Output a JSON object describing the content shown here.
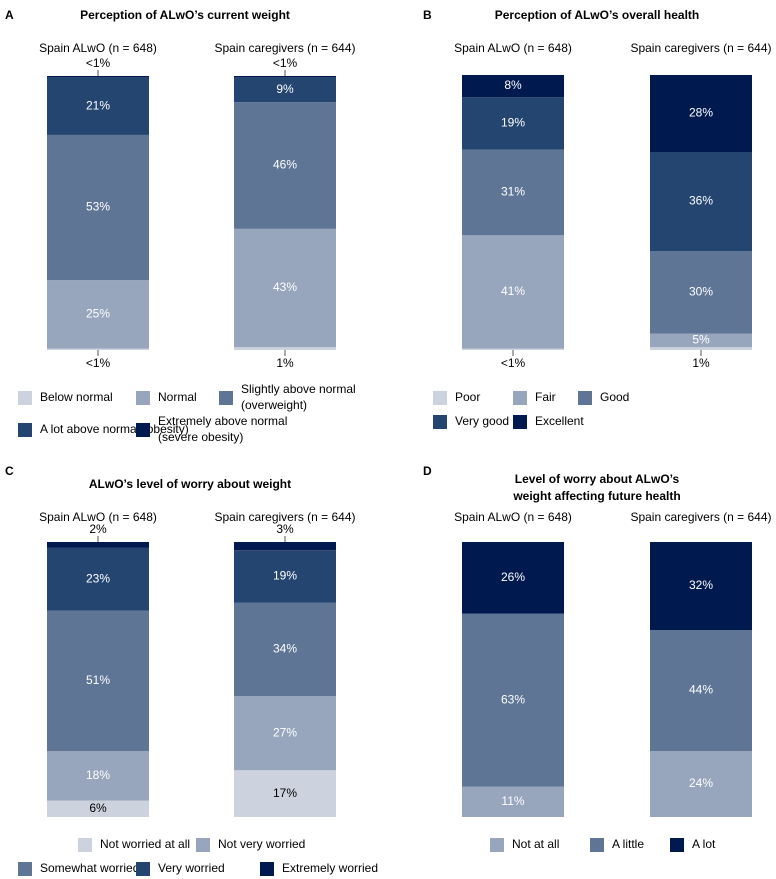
{
  "chart_data": [
    {
      "panel": "A",
      "type": "bar",
      "title": "Perception of ALwO’s current weight",
      "categories": [
        "Spain ALwO (n = 648)",
        "Spain caregivers (n = 644)"
      ],
      "legend": [
        "Below normal",
        "Normal",
        "Slightly above normal (overweight)",
        "A lot above normal (obesity)",
        "Extremely above normal (severe obesity)"
      ],
      "legend_lines": [
        [
          "Below normal"
        ],
        [
          "Normal"
        ],
        [
          "Slightly above normal",
          "(overweight)"
        ],
        [
          "A lot above normal (obesity)"
        ],
        [
          "Extremely above normal",
          "(severe obesity)"
        ]
      ],
      "series": [
        {
          "name": "Below normal",
          "values": [
            0.5,
            1
          ],
          "labels": [
            "<1%",
            "1%"
          ]
        },
        {
          "name": "Normal",
          "values": [
            25,
            43
          ],
          "labels": [
            "25%",
            "43%"
          ]
        },
        {
          "name": "Slightly above normal (overweight)",
          "values": [
            53,
            46
          ],
          "labels": [
            "53%",
            "46%"
          ]
        },
        {
          "name": "A lot above normal (obesity)",
          "values": [
            21,
            9
          ],
          "labels": [
            "21%",
            "9%"
          ]
        },
        {
          "name": "Extremely above normal (severe obesity)",
          "values": [
            0.5,
            0.5
          ],
          "labels": [
            "<1%",
            "<1%"
          ]
        }
      ],
      "stacked": true,
      "ylim": [
        0,
        100
      ]
    },
    {
      "panel": "B",
      "type": "bar",
      "title": "Perception of ALwO’s overall health",
      "categories": [
        "Spain ALwO (n = 648)",
        "Spain caregivers (n = 644)"
      ],
      "legend": [
        "Poor",
        "Fair",
        "Good",
        "Very good",
        "Excellent"
      ],
      "legend_lines": [
        [
          "Poor"
        ],
        [
          "Fair"
        ],
        [
          "Good"
        ],
        [
          "Very good"
        ],
        [
          "Excellent"
        ]
      ],
      "series": [
        {
          "name": "Poor",
          "values": [
            0.5,
            1
          ],
          "labels": [
            "<1%",
            "1%"
          ]
        },
        {
          "name": "Fair",
          "values": [
            41,
            5
          ],
          "labels": [
            "41%",
            "5%"
          ]
        },
        {
          "name": "Good",
          "values": [
            31,
            30
          ],
          "labels": [
            "31%",
            "30%"
          ]
        },
        {
          "name": "Very good",
          "values": [
            19,
            36
          ],
          "labels": [
            "19%",
            "36%"
          ]
        },
        {
          "name": "Excellent",
          "values": [
            8,
            28
          ],
          "labels": [
            "8%",
            "28%"
          ]
        }
      ],
      "stacked": true,
      "ylim": [
        0,
        100
      ]
    },
    {
      "panel": "C",
      "type": "bar",
      "title": "ALwO’s level of worry about weight",
      "categories": [
        "Spain ALwO (n = 648)",
        "Spain caregivers (n = 644)"
      ],
      "legend": [
        "Not worried at all",
        "Not very worried",
        "Somewhat worried",
        "Very worried",
        "Extremely worried"
      ],
      "legend_lines": [
        [
          "Not worried at all"
        ],
        [
          "Not very worried"
        ],
        [
          "Somewhat worried"
        ],
        [
          "Very worried"
        ],
        [
          "Extremely worried"
        ]
      ],
      "series": [
        {
          "name": "Not worried at all",
          "values": [
            6,
            17
          ],
          "labels": [
            "6%",
            "17%"
          ]
        },
        {
          "name": "Not very worried",
          "values": [
            18,
            27
          ],
          "labels": [
            "18%",
            "27%"
          ]
        },
        {
          "name": "Somewhat worried",
          "values": [
            51,
            34
          ],
          "labels": [
            "51%",
            "34%"
          ]
        },
        {
          "name": "Very worried",
          "values": [
            23,
            19
          ],
          "labels": [
            "23%",
            "19%"
          ]
        },
        {
          "name": "Extremely worried",
          "values": [
            2,
            3
          ],
          "labels": [
            "2%",
            "3%"
          ]
        }
      ],
      "stacked": true,
      "ylim": [
        0,
        100
      ]
    },
    {
      "panel": "D",
      "type": "bar",
      "title": "Level of worry about ALwO’s weight affecting future health",
      "title_lines": [
        "Level of worry about ALwO’s",
        "weight affecting future health"
      ],
      "categories": [
        "Spain ALwO (n = 648)",
        "Spain caregivers (n = 644)"
      ],
      "legend": [
        "Not at all",
        "A little",
        "A lot"
      ],
      "legend_lines": [
        [
          "Not at all"
        ],
        [
          "A little"
        ],
        [
          "A lot"
        ]
      ],
      "series": [
        {
          "name": "Not at all",
          "values": [
            11,
            24
          ],
          "labels": [
            "11%",
            "24%"
          ]
        },
        {
          "name": "A little",
          "values": [
            63,
            44
          ],
          "labels": [
            "63%",
            "44%"
          ]
        },
        {
          "name": "A lot",
          "values": [
            26,
            32
          ],
          "labels": [
            "26%",
            "32%"
          ]
        }
      ],
      "stacked": true,
      "ylim": [
        0,
        100
      ]
    }
  ],
  "colors": {
    "five_level": [
      "#cdd3de",
      "#97a6bc",
      "#5e7596",
      "#234570",
      "#00194f"
    ],
    "three_level": [
      "#97a6bc",
      "#5e7596",
      "#00194f"
    ],
    "label_on_dark": "#ffffff",
    "label_on_light": "#000000",
    "text": "#000000",
    "leader": "#555555"
  }
}
